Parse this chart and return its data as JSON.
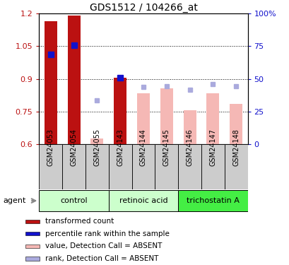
{
  "title": "GDS1512 / 104266_at",
  "samples": [
    "GSM24053",
    "GSM24054",
    "GSM24055",
    "GSM24143",
    "GSM24144",
    "GSM24145",
    "GSM24146",
    "GSM24147",
    "GSM24148"
  ],
  "transformed_count": [
    1.165,
    1.19,
    null,
    0.905,
    null,
    null,
    null,
    null,
    null
  ],
  "value_absent": [
    null,
    null,
    0.627,
    null,
    0.835,
    0.855,
    0.755,
    0.835,
    0.785
  ],
  "percentile_rank_right": [
    68.5,
    75.5,
    null,
    51.0,
    null,
    null,
    null,
    null,
    null
  ],
  "rank_absent_right": [
    null,
    null,
    33.5,
    null,
    44.0,
    44.5,
    41.5,
    46.0,
    44.5
  ],
  "ylim_left": [
    0.6,
    1.2
  ],
  "ylim_right": [
    0,
    100
  ],
  "yticks_left": [
    0.6,
    0.75,
    0.9,
    1.05,
    1.2
  ],
  "ytick_labels_left": [
    "0.6",
    "0.75",
    "0.9",
    "1.05",
    "1.2"
  ],
  "yticks_right": [
    0,
    25,
    50,
    75,
    100
  ],
  "ytick_labels_right": [
    "0",
    "25",
    "50",
    "75",
    "100%"
  ],
  "bar_width": 0.55,
  "marker_size": 6,
  "color_red": "#bb1111",
  "color_blue": "#1111cc",
  "color_pink": "#f5b8b5",
  "color_lightblue": "#aaaadd",
  "groups": [
    {
      "label": "control",
      "start": 0,
      "end": 2,
      "color": "#ccffcc"
    },
    {
      "label": "retinoic acid",
      "start": 3,
      "end": 5,
      "color": "#ccffcc"
    },
    {
      "label": "trichostatin A",
      "start": 6,
      "end": 8,
      "color": "#44ee44"
    }
  ],
  "legend_items": [
    {
      "color": "#bb1111",
      "label": "transformed count"
    },
    {
      "color": "#1111cc",
      "label": "percentile rank within the sample"
    },
    {
      "color": "#f5b8b5",
      "label": "value, Detection Call = ABSENT"
    },
    {
      "color": "#aaaadd",
      "label": "rank, Detection Call = ABSENT"
    }
  ]
}
